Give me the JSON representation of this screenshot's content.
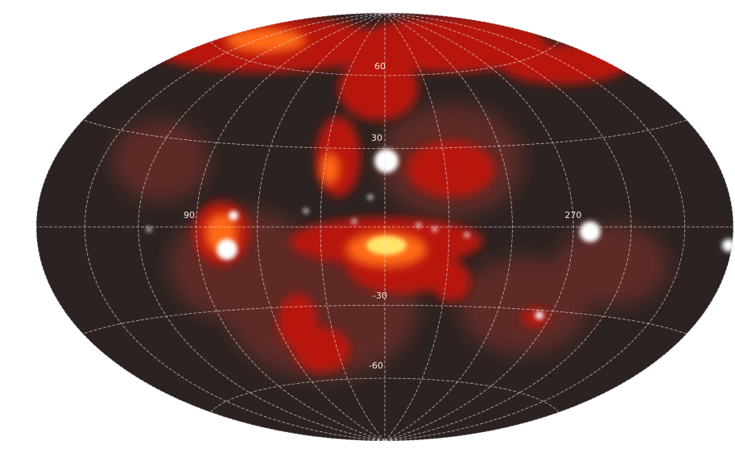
{
  "grid_labels": [
    "60",
    "30",
    "90",
    "270",
    "-30",
    "-60"
  ]
}
